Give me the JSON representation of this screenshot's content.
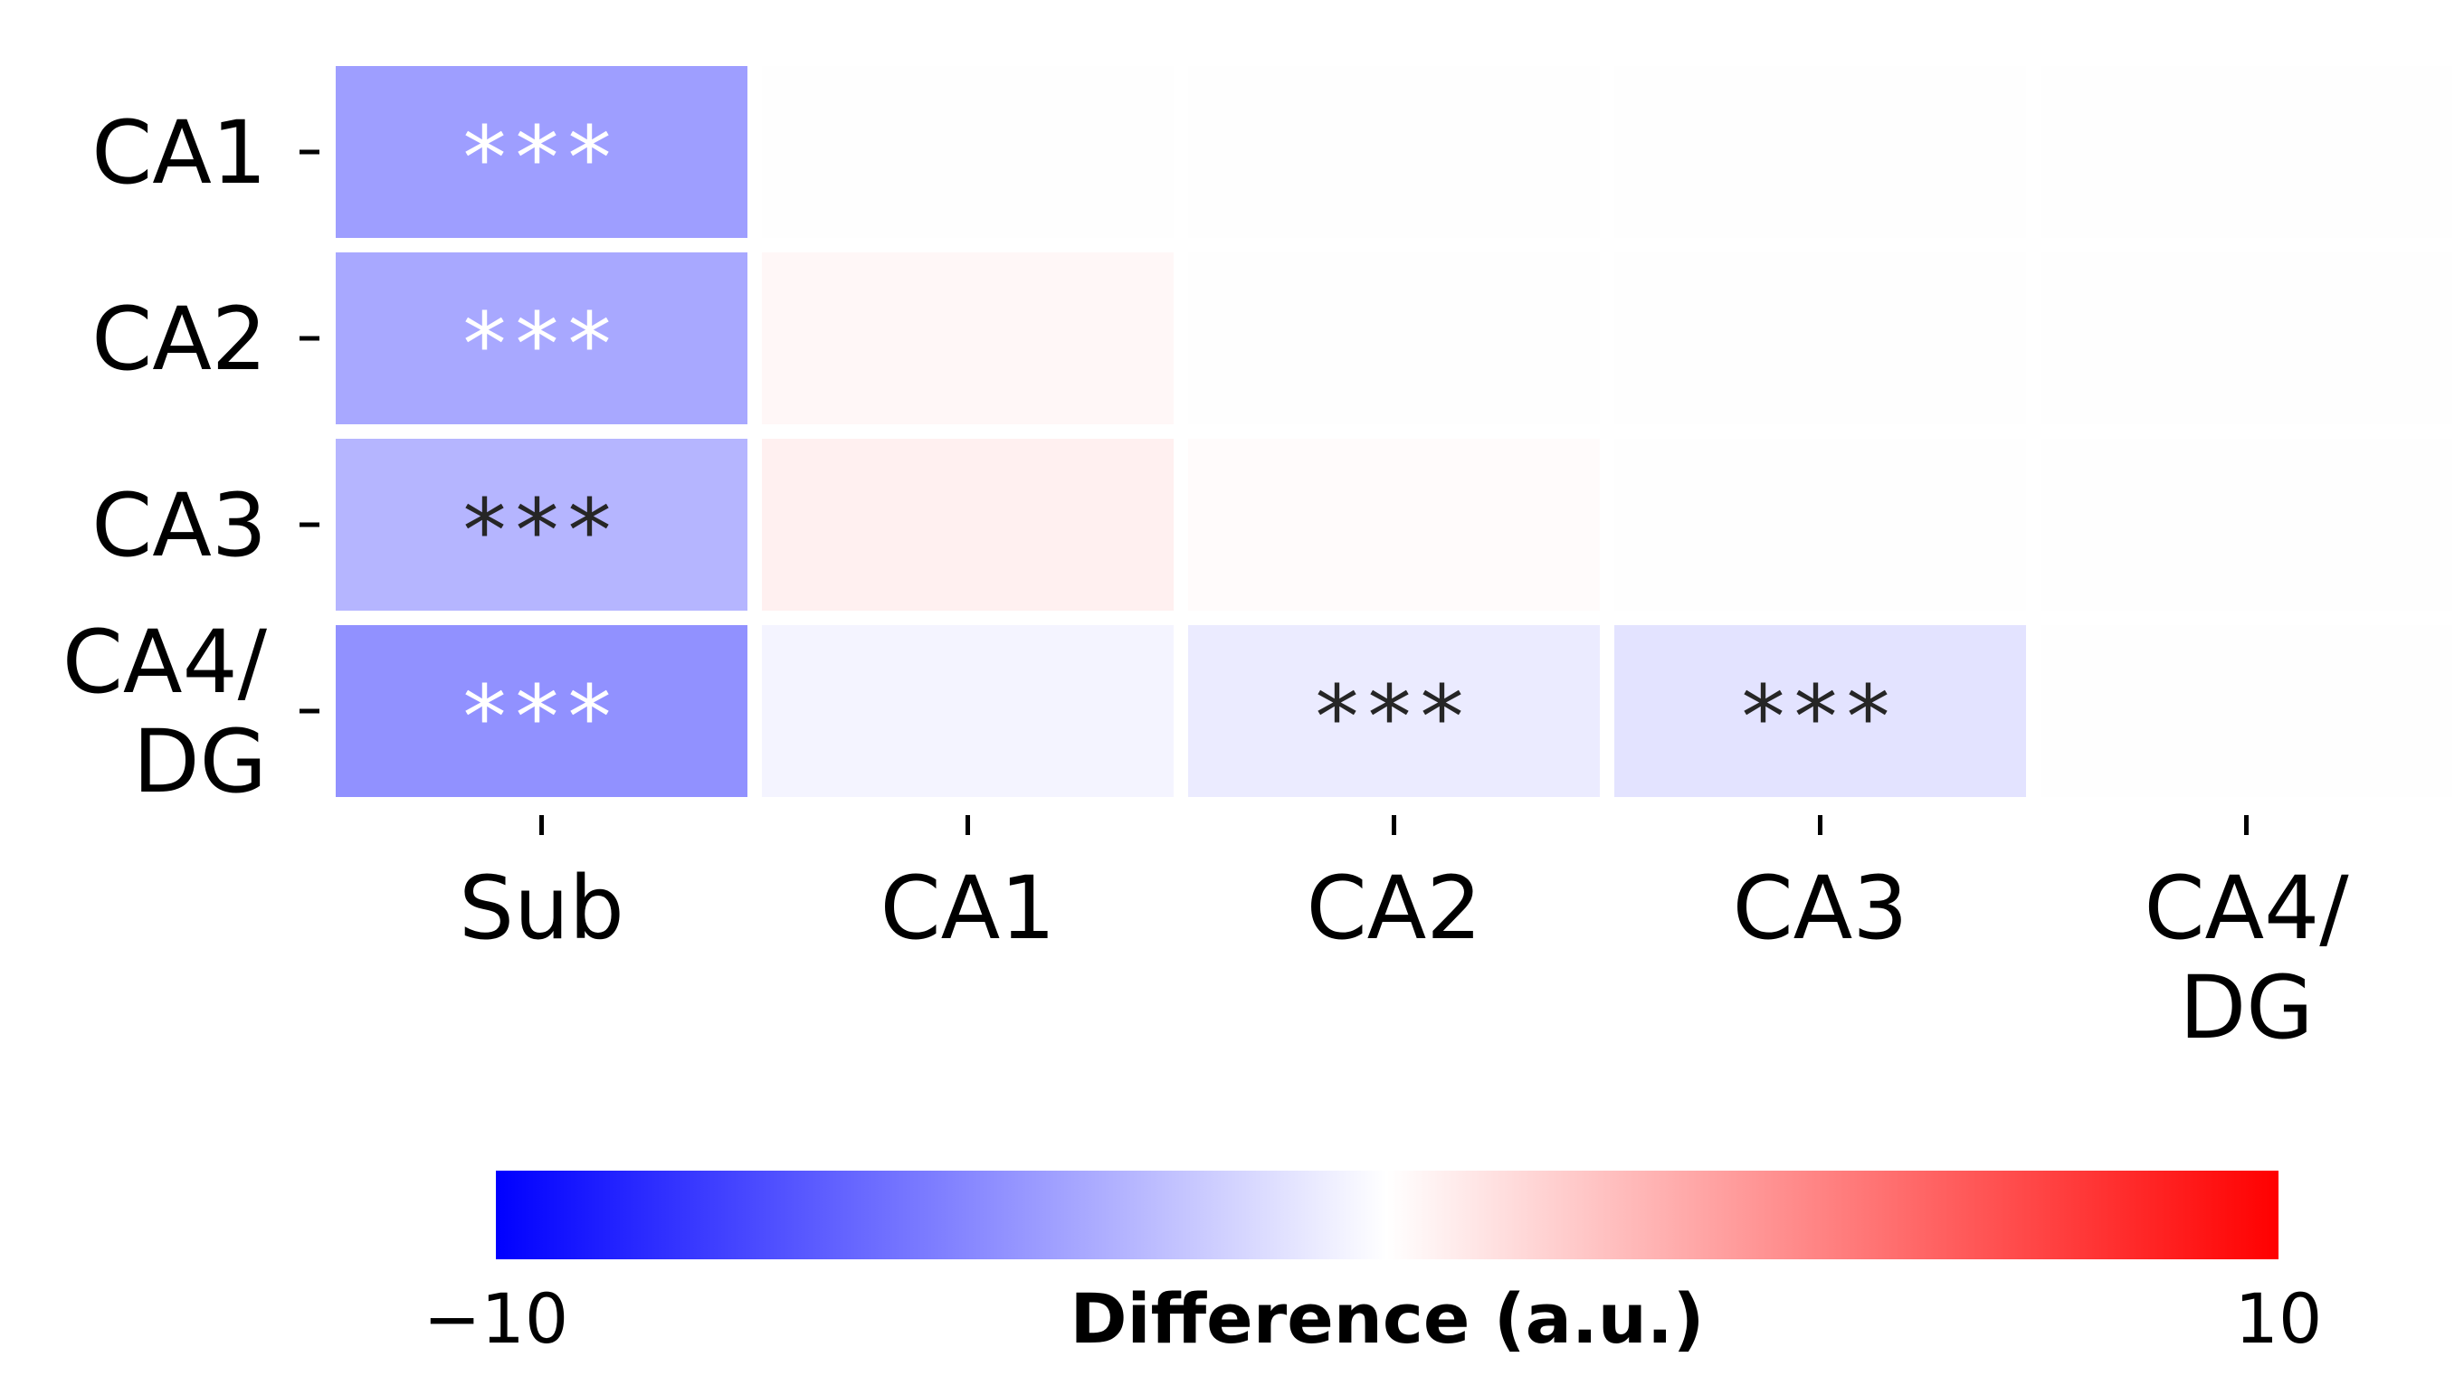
{
  "chart_data": {
    "type": "heatmap",
    "rows": [
      [
        "CA1"
      ],
      [
        "CA2"
      ],
      [
        "CA3"
      ],
      [
        "CA4/",
        "DG"
      ]
    ],
    "columns": [
      [
        "Sub"
      ],
      [
        "CA1"
      ],
      [
        "CA2"
      ],
      [
        "CA3"
      ],
      [
        "CA4/",
        "DG"
      ]
    ],
    "values": [
      [
        -3.8,
        0.0,
        0.0,
        0.0,
        0.0
      ],
      [
        -3.4,
        0.3,
        0.0,
        0.0,
        0.0
      ],
      [
        -2.9,
        0.6,
        0.15,
        0.0,
        0.0
      ],
      [
        -4.3,
        -0.45,
        -0.8,
        -1.1,
        0.0
      ]
    ],
    "annotations": [
      [
        "***",
        "",
        "",
        "",
        ""
      ],
      [
        "***",
        "",
        "",
        "",
        ""
      ],
      [
        "***",
        "",
        "",
        "",
        ""
      ],
      [
        "***",
        "",
        "***",
        "***",
        ""
      ]
    ],
    "masked_upper_triangle": true,
    "colormap": "bwr",
    "colors": {
      "low": "#0000ff",
      "mid": "#ffffff",
      "high": "#ff0000"
    },
    "vmin": -10,
    "vmax": 10,
    "colorbar": {
      "label": "Difference (a.u.)",
      "min_label": "−10",
      "max_label": "10",
      "orientation": "horizontal",
      "placement": "bottom"
    }
  }
}
